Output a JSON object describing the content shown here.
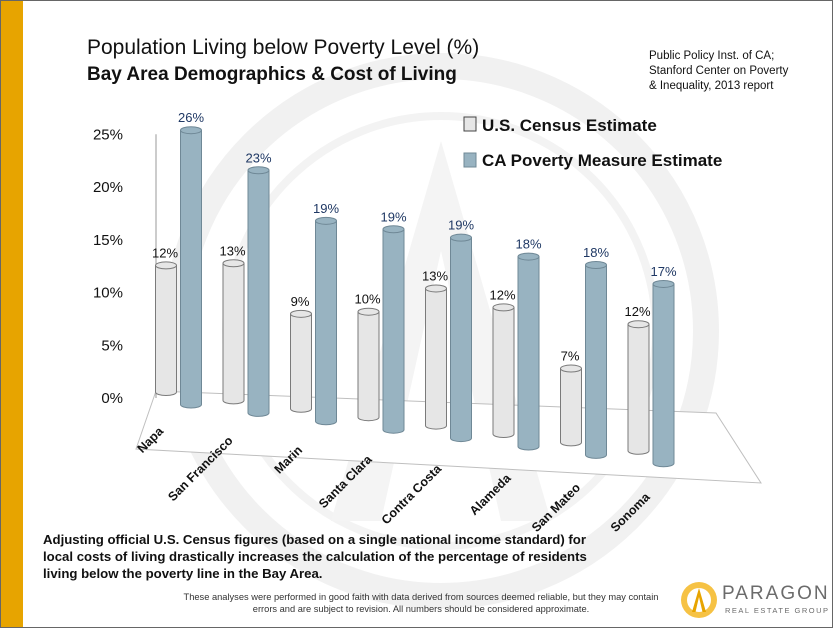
{
  "title": "Population Living below Poverty Level (%)",
  "subtitle": "Bay Area Demographics & Cost of Living",
  "source": "Public Policy Inst. of CA;\nStanford Center on Poverty\n& Inequality, 2013 report",
  "footnote": "Adjusting official U.S. Census figures (based on a single national income standard) for local costs of living drastically increases the calculation of the percentage of residents living below the poverty line in the Bay Area.",
  "disclaimer": "These analyses were performed in good faith with data derived from sources deemed reliable, but they may contain errors and are subject to revision.  All numbers should be considered approximate.",
  "logo": {
    "name": "PARAGON",
    "tagline": "REAL ESTATE GROUP"
  },
  "colors": {
    "accent_bar": "#e7a400",
    "census": "#e6e6e6",
    "ca": "#98b3c1",
    "ca_label": "#1f3864"
  },
  "chart_data": {
    "type": "bar",
    "categories": [
      "Napa",
      "San Francisco",
      "Marin",
      "Santa Clara",
      "Contra Costa",
      "Alameda",
      "San Mateo",
      "Sonoma"
    ],
    "series": [
      {
        "name": "U.S. Census Estimate",
        "values": [
          12,
          13,
          9,
          10,
          13,
          12,
          7,
          12
        ],
        "labels": [
          "12%",
          "13%",
          "9%",
          "10%",
          "13%",
          "12%",
          "7%",
          "12%"
        ]
      },
      {
        "name": "CA Poverty Measure Estimate",
        "values": [
          26,
          23,
          19,
          19,
          19,
          18,
          18,
          17
        ],
        "labels": [
          "26%",
          "23%",
          "19%",
          "19%",
          "19%",
          "18%",
          "18%",
          "17%"
        ]
      }
    ],
    "y_ticks": [
      "0%",
      "5%",
      "10%",
      "15%",
      "20%",
      "25%"
    ],
    "ylim": [
      0,
      25
    ],
    "legend_position": "top-right",
    "style": "3d-cylinder"
  }
}
